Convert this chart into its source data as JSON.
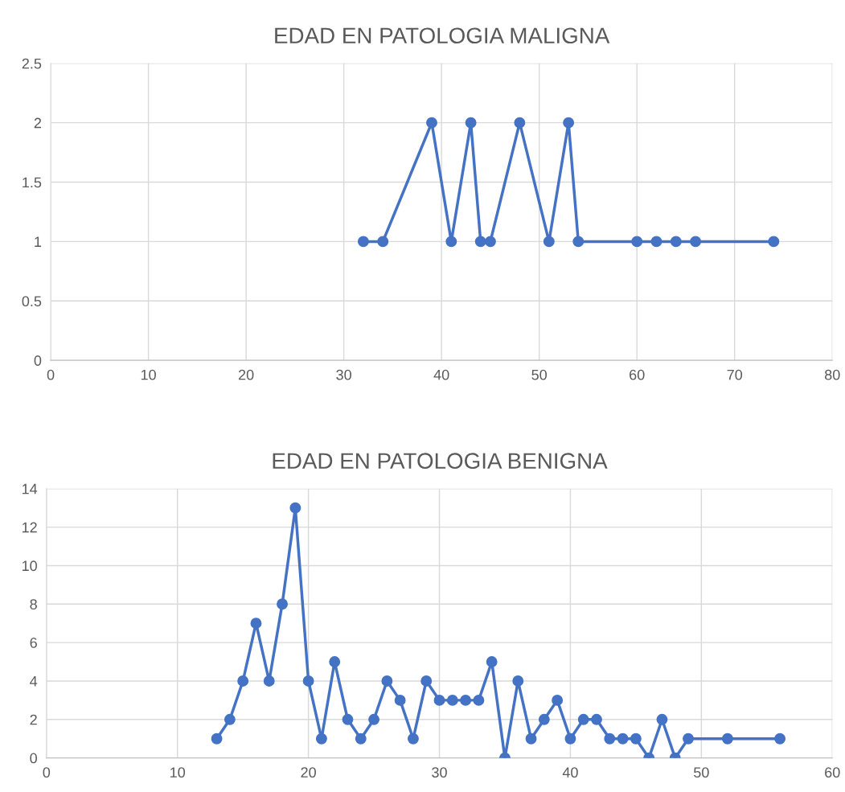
{
  "chart_data": [
    {
      "type": "line",
      "title": "EDAD EN PATOLOGIA MALIGNA",
      "marker": "circle",
      "grid": true,
      "xlim": [
        0,
        80
      ],
      "xticks": [
        0,
        10,
        20,
        30,
        40,
        50,
        60,
        70,
        80
      ],
      "ylim": [
        0,
        2.5
      ],
      "yticks": [
        0,
        0.5,
        1,
        1.5,
        2,
        2.5
      ],
      "series": [
        {
          "color": "#4472c4",
          "x": [
            32,
            34,
            39,
            41,
            43,
            44,
            45,
            48,
            51,
            53,
            54,
            60,
            62,
            64,
            66,
            74
          ],
          "values": [
            1,
            1,
            2,
            1,
            2,
            1,
            1,
            2,
            1,
            2,
            1,
            1,
            1,
            1,
            1,
            1
          ]
        }
      ]
    },
    {
      "type": "line",
      "title": "EDAD EN PATOLOGIA BENIGNA",
      "marker": "circle",
      "grid": true,
      "xlim": [
        0,
        60
      ],
      "xticks": [
        0,
        10,
        20,
        30,
        40,
        50,
        60
      ],
      "ylim": [
        0,
        14
      ],
      "yticks": [
        0,
        2,
        4,
        6,
        8,
        10,
        12,
        14
      ],
      "series": [
        {
          "color": "#4472c4",
          "x": [
            13,
            14,
            15,
            16,
            17,
            18,
            19,
            20,
            21,
            22,
            23,
            24,
            25,
            26,
            27,
            28,
            29,
            30,
            31,
            32,
            33,
            34,
            35,
            36,
            37,
            38,
            39,
            40,
            41,
            42,
            43,
            44,
            45,
            46,
            47,
            48,
            49,
            52,
            56
          ],
          "values": [
            1,
            2,
            4,
            7,
            4,
            8,
            13,
            4,
            1,
            5,
            2,
            1,
            2,
            4,
            3,
            1,
            4,
            3,
            3,
            3,
            3,
            5,
            0,
            4,
            1,
            2,
            3,
            1,
            2,
            2,
            1,
            1,
            1,
            0,
            2,
            0,
            1,
            1,
            1
          ]
        }
      ]
    }
  ]
}
